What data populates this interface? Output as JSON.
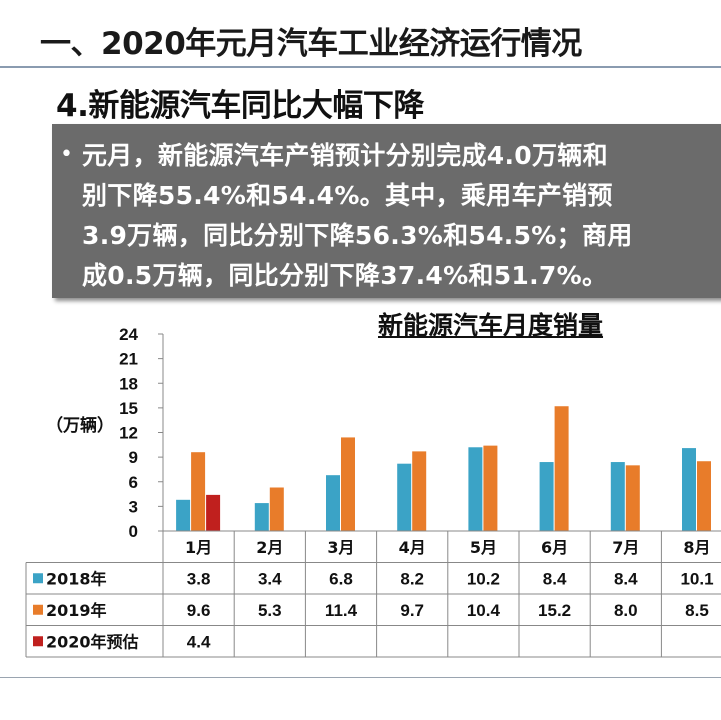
{
  "slide": {
    "heading": "一、2020年元月汽车工业经济运行情况",
    "subheading": "4.新能源汽车同比大幅下降",
    "bullet": "•",
    "summary_lines": [
      "元月，新能源汽车产销预计分别完成4.0万辆和",
      "别下降55.4%和54.4%。其中，乘用车产销预",
      "3.9万辆，同比分别下降56.3%和54.5%；商用",
      "成0.5万辆，同比分别下降37.4%和51.7%。"
    ]
  },
  "chart_data": {
    "type": "bar",
    "title": "新能源汽车月度销量",
    "ylabel": "（万辆）",
    "ylim": [
      0,
      24
    ],
    "yticks": [
      "0",
      "3",
      "6",
      "9",
      "12",
      "15",
      "18",
      "21",
      "24"
    ],
    "categories": [
      "1月",
      "2月",
      "3月",
      "4月",
      "5月",
      "6月",
      "7月",
      "8月"
    ],
    "series": [
      {
        "name": "2018年",
        "color": "#3ba3c6",
        "values": [
          3.8,
          3.4,
          6.8,
          8.2,
          10.2,
          8.4,
          8.4,
          10.1
        ],
        "labels": [
          "3.8",
          "3.4",
          "6.8",
          "8.2",
          "10.2",
          "8.4",
          "8.4",
          "10.1"
        ]
      },
      {
        "name": "2019年",
        "color": "#e87c2a",
        "values": [
          9.6,
          5.3,
          11.4,
          9.7,
          10.4,
          15.2,
          8.0,
          8.5
        ],
        "labels": [
          "9.6",
          "5.3",
          "11.4",
          "9.7",
          "10.4",
          "15.2",
          "8.0",
          "8.5"
        ]
      },
      {
        "name": "2020年预估",
        "color": "#c0201e",
        "values": [
          4.4,
          null,
          null,
          null,
          null,
          null,
          null,
          null
        ],
        "labels": [
          "4.4",
          "",
          "",
          "",
          "",
          "",
          "",
          ""
        ]
      }
    ],
    "legend": "data-table",
    "grid": false
  }
}
